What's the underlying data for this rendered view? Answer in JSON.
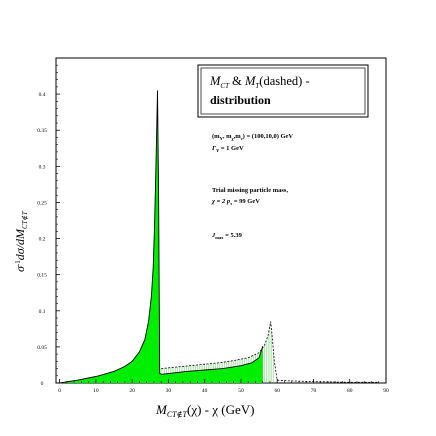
{
  "chart_data": {
    "type": "line",
    "title": [
      "M",
      "CT",
      " & ",
      "M",
      "T",
      "(dashed) -",
      "distribution"
    ],
    "xlabel": [
      "M",
      "CT∉T",
      "(χ) - χ  (GeV)"
    ],
    "ylabel": [
      "σ",
      "-1",
      "dσ/dM",
      "CT∉T"
    ],
    "xlim": [
      -1,
      90
    ],
    "ylim": [
      0,
      0.45
    ],
    "x_ticks": [
      "0",
      "10",
      "20",
      "30",
      "40",
      "50",
      "60",
      "70",
      "80",
      "90"
    ],
    "x_tick_values": [
      0,
      10,
      20,
      30,
      40,
      50,
      60,
      70,
      80,
      90
    ],
    "y_ticks": [
      "0",
      "0.05",
      "0.1",
      "0.15",
      "0.2",
      "0.25",
      "0.3",
      "0.35",
      "0.4"
    ],
    "y_tick_values": [
      0,
      0.05,
      0.1,
      0.15,
      0.2,
      0.25,
      0.3,
      0.35,
      0.4
    ],
    "annotations": [
      [
        "(m",
        "Y",
        ", m",
        "χ",
        ",m",
        "ν",
        ") = (100,10,0) GeV"
      ],
      [
        "Γ",
        "Y",
        " = 1 GeV"
      ],
      [
        "Trial missing particle mass,"
      ],
      [
        "χ = 2 p",
        "τ",
        " = 99 GeV"
      ],
      [
        "J",
        "max",
        " = 5.39"
      ]
    ],
    "fill_color": "#00ee00",
    "series": [
      {
        "style": "solid",
        "x": [
          0,
          5,
          10,
          15,
          18,
          20,
          22,
          23.5,
          24.5,
          25.3,
          25.8,
          26.2,
          26.6,
          27.0,
          27.3,
          27.6,
          28.2,
          30,
          35,
          40,
          45,
          50,
          53,
          55,
          56
        ],
        "y": [
          0,
          0.004,
          0.009,
          0.016,
          0.023,
          0.03,
          0.043,
          0.06,
          0.085,
          0.12,
          0.16,
          0.22,
          0.31,
          0.405,
          0.26,
          0.013,
          0.012,
          0.013,
          0.016,
          0.018,
          0.02,
          0.024,
          0.028,
          0.035,
          0.051
        ]
      },
      {
        "style": "dashed",
        "x": [
          28,
          32,
          36,
          40,
          44,
          48,
          52,
          55,
          56.5,
          57.5,
          58.2,
          58.7,
          59.2,
          60,
          63,
          70,
          80,
          88
        ],
        "y": [
          0.02,
          0.022,
          0.024,
          0.026,
          0.028,
          0.031,
          0.035,
          0.042,
          0.052,
          0.066,
          0.085,
          0.06,
          0.03,
          0.004,
          0.003,
          0.002,
          0.001,
          0.001
        ]
      }
    ]
  }
}
